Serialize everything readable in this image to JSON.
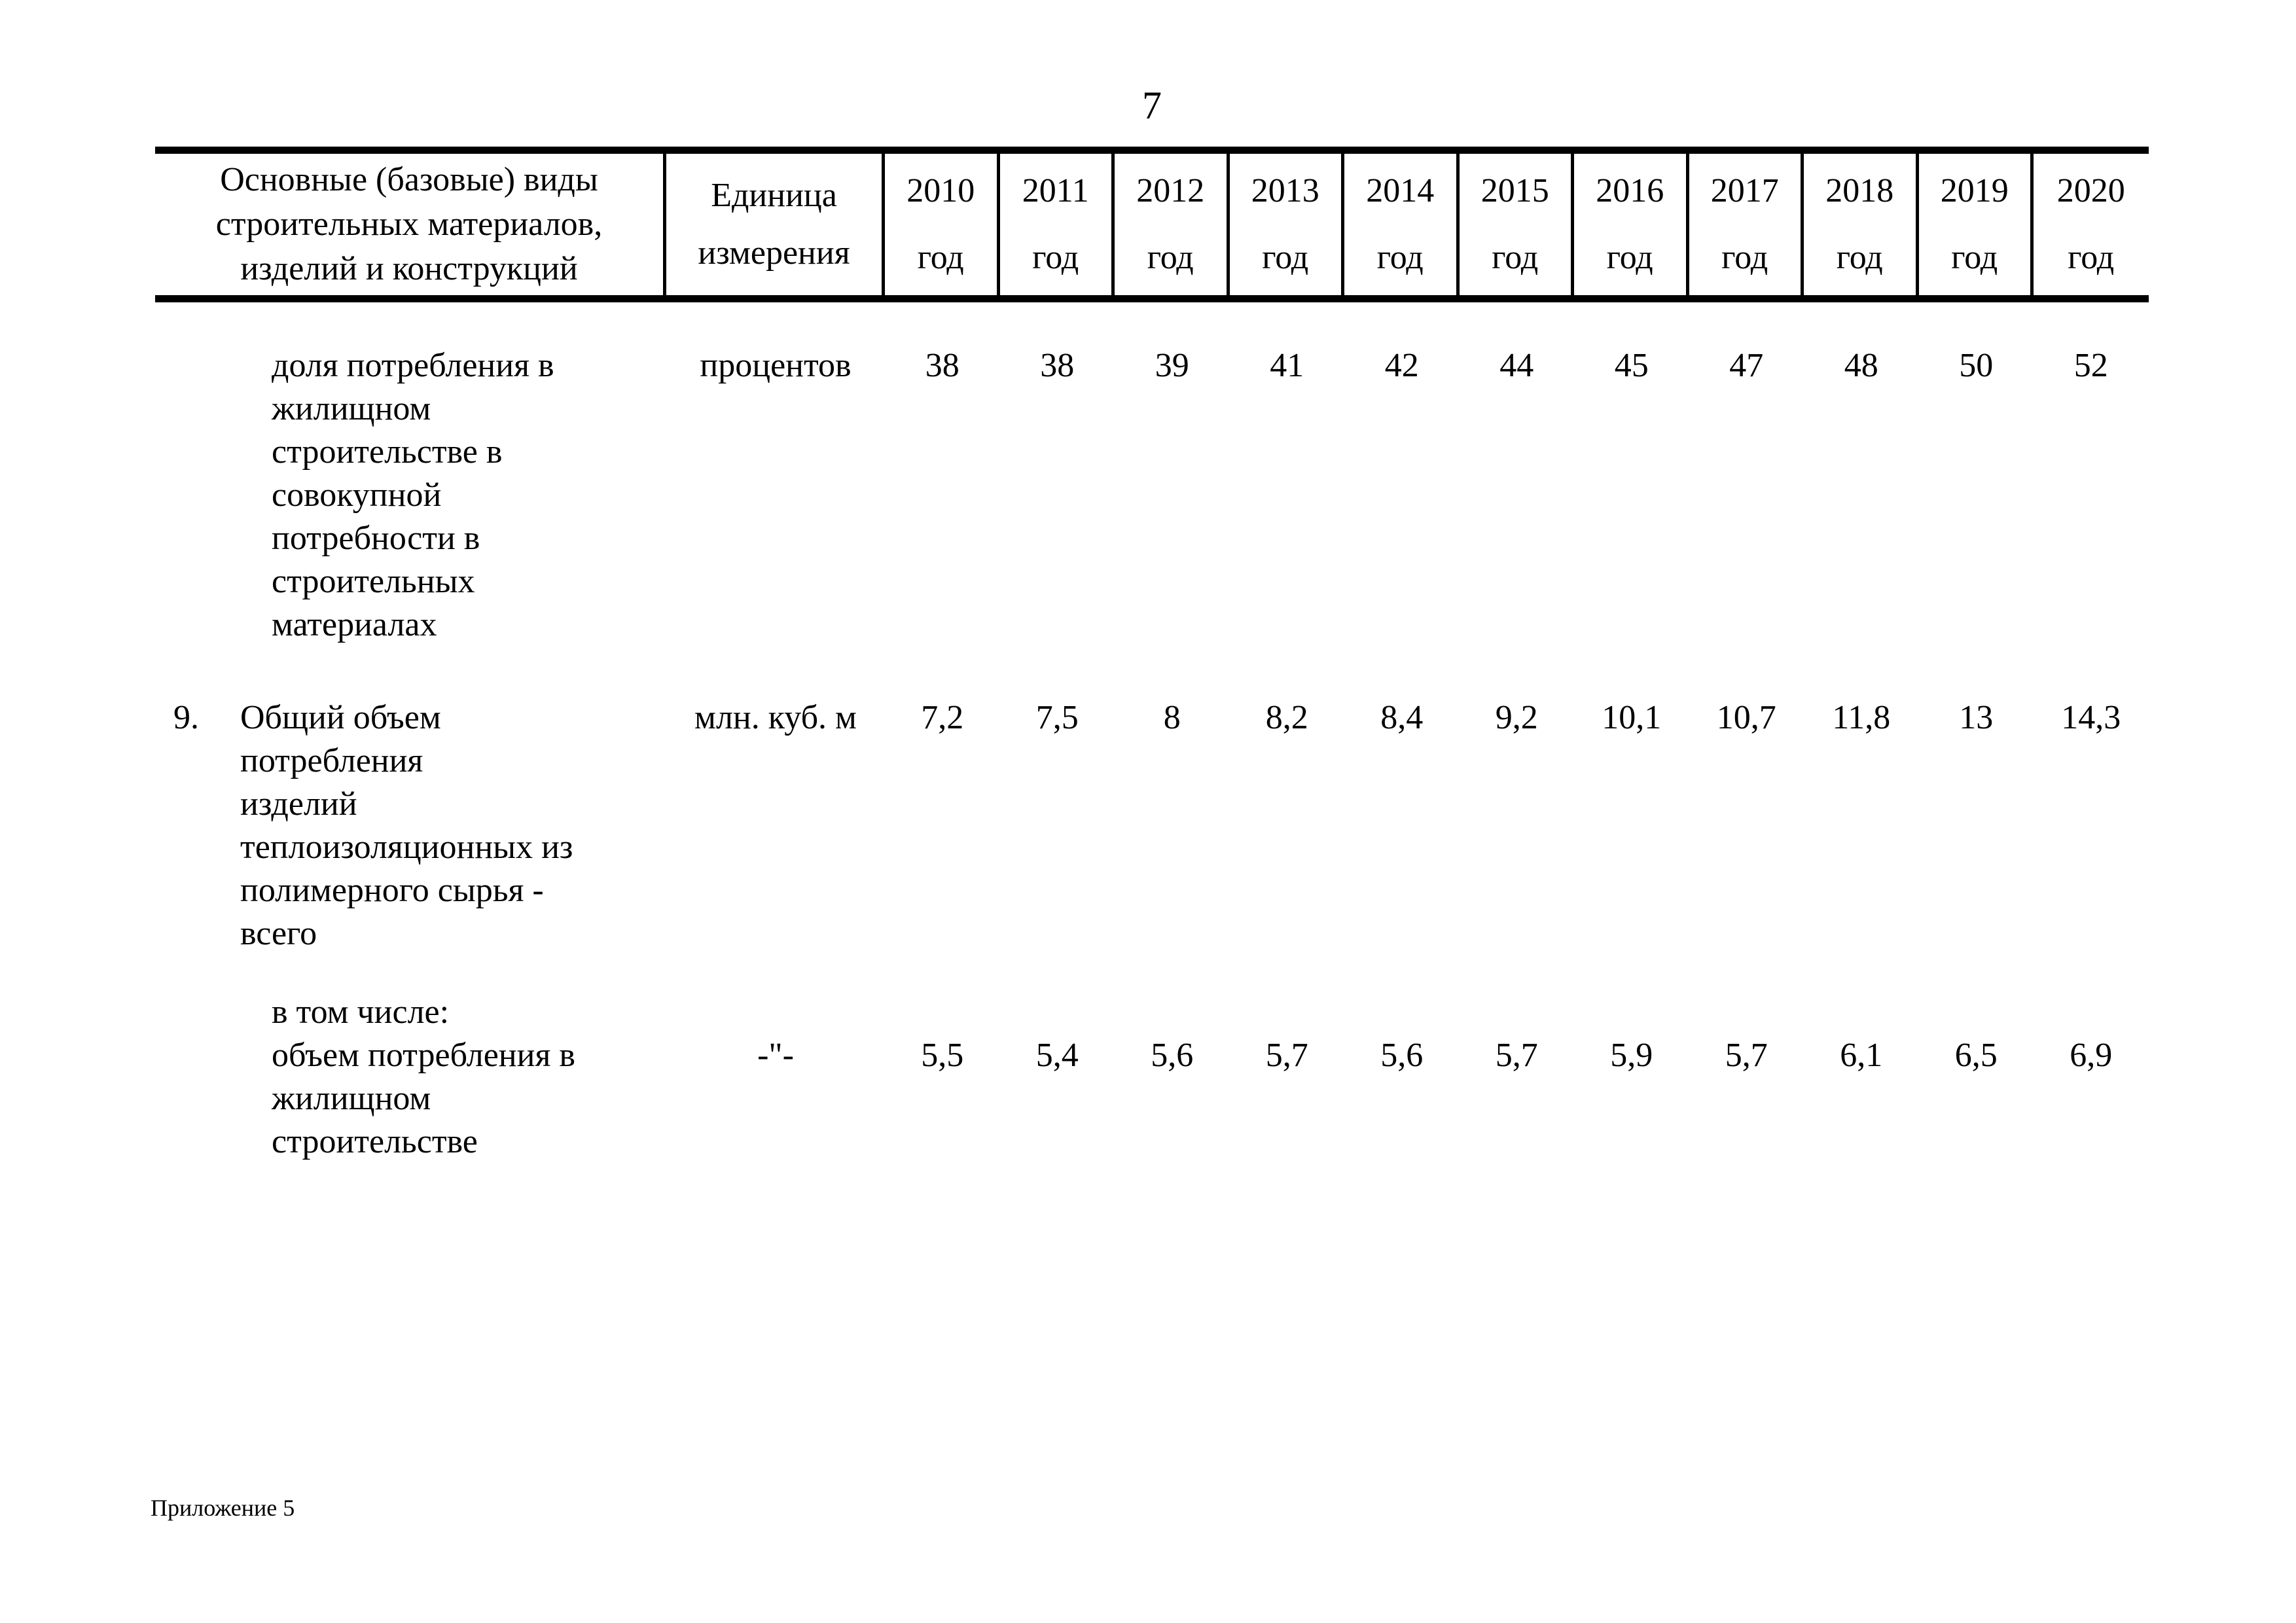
{
  "page": {
    "number": "7",
    "footer": "Приложение 5"
  },
  "colors": {
    "text": "#000000",
    "background": "#ffffff",
    "border": "#000000"
  },
  "table": {
    "header": {
      "col1_lines": [
        "Основные (базовые) виды",
        "строительных материалов,",
        "изделий и конструкций"
      ],
      "unit_lines": [
        "Единица",
        "измерения"
      ],
      "year_suffix": "год",
      "years": [
        "2010",
        "2011",
        "2012",
        "2013",
        "2014",
        "2015",
        "2016",
        "2017",
        "2018",
        "2019",
        "2020"
      ]
    },
    "rows": [
      {
        "num": "",
        "name_lines": [
          "доля потребления в",
          "жилищном",
          "строительстве в",
          "совокупной",
          "потребности в",
          "строительных",
          "материалах"
        ],
        "unit": "процентов",
        "values": [
          "38",
          "38",
          "39",
          "41",
          "42",
          "44",
          "45",
          "47",
          "48",
          "50",
          "52"
        ]
      },
      {
        "num": "9.",
        "name_lines": [
          "Общий объем",
          "потребления",
          "изделий",
          "теплоизоляционных из",
          "полимерного сырья -",
          "всего"
        ],
        "unit": "млн. куб. м",
        "values": [
          "7,2",
          "7,5",
          "8",
          "8,2",
          "8,4",
          "9,2",
          "10,1",
          "10,7",
          "11,8",
          "13",
          "14,3"
        ]
      },
      {
        "num": "",
        "name_lines": [
          "в том числе:",
          "объем потребления в",
          "жилищном",
          "строительстве"
        ],
        "unit": "-\"-",
        "values": [
          "5,5",
          "5,4",
          "5,6",
          "5,7",
          "5,6",
          "5,7",
          "5,9",
          "5,7",
          "6,1",
          "6,5",
          "6,9"
        ]
      }
    ]
  }
}
